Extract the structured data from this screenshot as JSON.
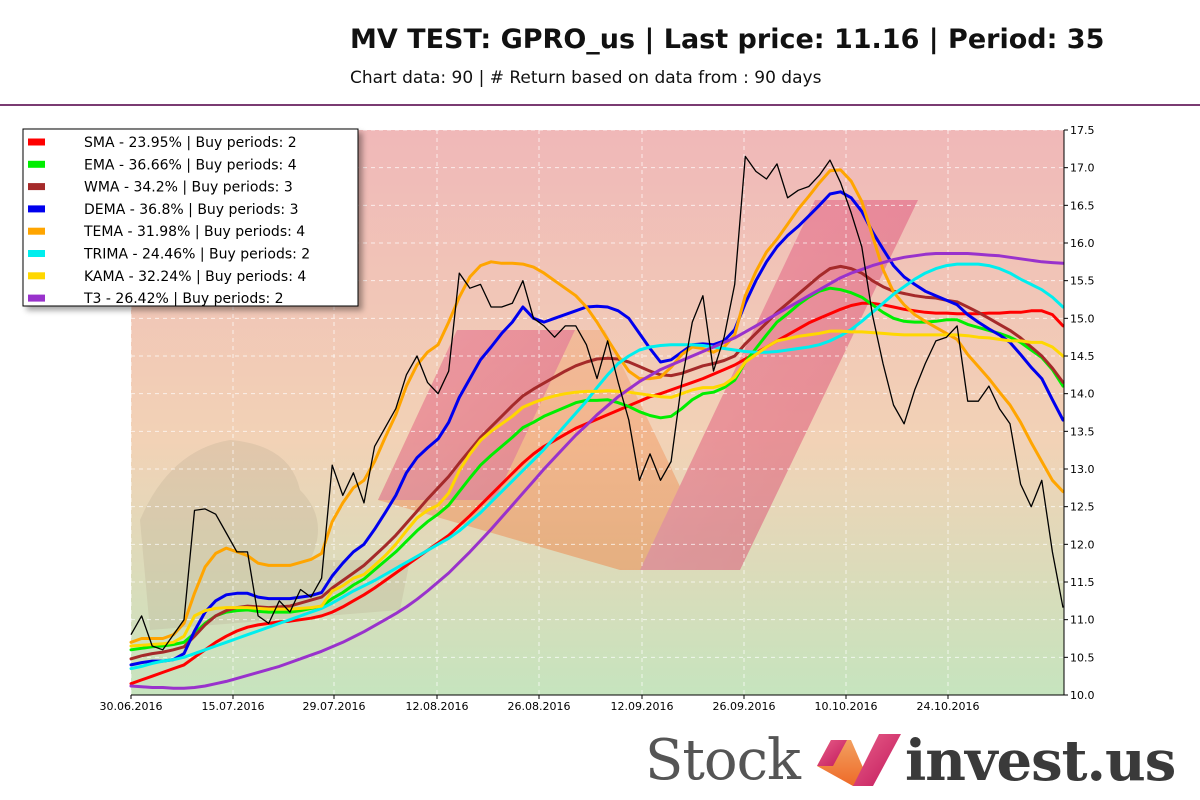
{
  "header": {
    "title": "MV TEST: GPRO_us | Last price: 11.16 | Period: 35",
    "subtitle": "Chart data: 90 | # Return based on data from : 90 days"
  },
  "brand": {
    "stock": "Stock",
    "invest": "invest.us"
  },
  "colors": {
    "divider": "#7a3b72",
    "bg_top": "#f0b8b8",
    "bg_bottom": "#c6e4be"
  },
  "chart_data": {
    "type": "line",
    "ylim": [
      10.0,
      17.5
    ],
    "y_ticks": [
      "10.0",
      "10.5",
      "11.0",
      "11.5",
      "12.0",
      "12.5",
      "13.0",
      "13.5",
      "14.0",
      "14.5",
      "15.0",
      "15.5",
      "16.0",
      "16.5",
      "17.0",
      "17.5"
    ],
    "x_tick_labels": [
      "30.06.2016",
      "15.07.2016",
      "29.07.2016",
      "12.08.2016",
      "26.08.2016",
      "12.09.2016",
      "26.09.2016",
      "10.10.2016",
      "24.10.2016"
    ],
    "legend_position": "top-left",
    "grid": true,
    "price": [
      10.8,
      11.05,
      10.65,
      10.6,
      10.8,
      11.0,
      12.45,
      12.47,
      12.4,
      12.15,
      11.9,
      11.9,
      11.05,
      10.95,
      11.25,
      11.1,
      11.4,
      11.3,
      11.55,
      13.05,
      12.65,
      12.95,
      12.55,
      13.3,
      13.55,
      13.8,
      14.25,
      14.5,
      14.15,
      14.0,
      14.3,
      15.6,
      15.4,
      15.45,
      15.15,
      15.15,
      15.2,
      15.5,
      15.0,
      14.9,
      14.75,
      14.9,
      14.9,
      14.65,
      14.2,
      14.7,
      14.15,
      13.65,
      12.85,
      13.2,
      12.85,
      13.1,
      14.15,
      14.95,
      15.3,
      14.3,
      14.75,
      15.45,
      17.15,
      16.95,
      16.85,
      17.05,
      16.6,
      16.7,
      16.75,
      16.9,
      17.1,
      16.8,
      16.4,
      15.95,
      15.05,
      14.4,
      13.85,
      13.6,
      14.05,
      14.4,
      14.7,
      14.75,
      14.9,
      13.9,
      13.9,
      14.1,
      13.8,
      13.6,
      12.8,
      12.5,
      12.85,
      11.9,
      11.16
    ],
    "series": [
      {
        "name": "SMA - 23.95% | Buy periods: 2",
        "color": "#ff0000",
        "values": [
          10.15,
          10.2,
          10.25,
          10.3,
          10.35,
          10.4,
          10.5,
          10.6,
          10.7,
          10.78,
          10.85,
          10.9,
          10.93,
          10.95,
          10.97,
          10.98,
          11.0,
          11.02,
          11.05,
          11.1,
          11.17,
          11.25,
          11.33,
          11.42,
          11.52,
          11.62,
          11.72,
          11.82,
          11.92,
          12.02,
          12.12,
          12.25,
          12.38,
          12.52,
          12.66,
          12.8,
          12.94,
          13.08,
          13.2,
          13.3,
          13.38,
          13.46,
          13.54,
          13.6,
          13.66,
          13.72,
          13.78,
          13.84,
          13.9,
          13.96,
          14.0,
          14.05,
          14.1,
          14.15,
          14.2,
          14.26,
          14.32,
          14.38,
          14.46,
          14.54,
          14.62,
          14.7,
          14.78,
          14.86,
          14.94,
          15.0,
          15.06,
          15.12,
          15.17,
          15.2,
          15.2,
          15.18,
          15.15,
          15.12,
          15.1,
          15.08,
          15.07,
          15.07,
          15.06,
          15.06,
          15.06,
          15.07,
          15.07,
          15.08,
          15.08,
          15.1,
          15.1,
          15.05,
          14.9
        ]
      },
      {
        "name": "EMA - 36.66% | Buy periods: 4",
        "color": "#00ee00",
        "values": [
          10.6,
          10.62,
          10.64,
          10.65,
          10.67,
          10.7,
          10.82,
          10.95,
          11.05,
          11.1,
          11.12,
          11.13,
          11.11,
          11.1,
          11.1,
          11.1,
          11.12,
          11.15,
          11.18,
          11.28,
          11.36,
          11.46,
          11.54,
          11.66,
          11.78,
          11.9,
          12.04,
          12.18,
          12.3,
          12.4,
          12.52,
          12.7,
          12.88,
          13.05,
          13.18,
          13.3,
          13.42,
          13.55,
          13.62,
          13.7,
          13.76,
          13.82,
          13.88,
          13.91,
          13.91,
          13.92,
          13.88,
          13.83,
          13.76,
          13.71,
          13.68,
          13.7,
          13.8,
          13.92,
          14.0,
          14.02,
          14.08,
          14.18,
          14.42,
          14.6,
          14.78,
          14.95,
          15.06,
          15.18,
          15.28,
          15.36,
          15.4,
          15.38,
          15.34,
          15.28,
          15.18,
          15.08,
          15.0,
          14.96,
          14.95,
          14.95,
          14.96,
          14.98,
          14.98,
          14.92,
          14.88,
          14.84,
          14.8,
          14.75,
          14.68,
          14.58,
          14.48,
          14.32,
          14.1
        ]
      },
      {
        "name": "WMA - 34.2% | Buy periods: 3",
        "color": "#a52a2a",
        "values": [
          10.48,
          10.52,
          10.55,
          10.57,
          10.6,
          10.64,
          10.78,
          10.93,
          11.05,
          11.12,
          11.16,
          11.18,
          11.17,
          11.16,
          11.17,
          11.18,
          11.22,
          11.26,
          11.3,
          11.42,
          11.52,
          11.62,
          11.72,
          11.85,
          11.98,
          12.12,
          12.28,
          12.44,
          12.6,
          12.75,
          12.9,
          13.08,
          13.25,
          13.42,
          13.56,
          13.7,
          13.84,
          13.97,
          14.06,
          14.14,
          14.22,
          14.3,
          14.37,
          14.42,
          14.46,
          14.47,
          14.46,
          14.42,
          14.36,
          14.3,
          14.25,
          14.24,
          14.27,
          14.32,
          14.37,
          14.4,
          14.44,
          14.5,
          14.66,
          14.8,
          14.94,
          15.08,
          15.2,
          15.32,
          15.44,
          15.56,
          15.66,
          15.69,
          15.66,
          15.6,
          15.5,
          15.42,
          15.36,
          15.33,
          15.3,
          15.28,
          15.27,
          15.24,
          15.22,
          15.15,
          15.08,
          15.0,
          14.92,
          14.84,
          14.74,
          14.62,
          14.5,
          14.34,
          14.15
        ]
      },
      {
        "name": "DEMA - 36.8% | Buy periods: 3",
        "color": "#0000ee",
        "values": [
          10.4,
          10.43,
          10.45,
          10.45,
          10.47,
          10.55,
          10.85,
          11.1,
          11.25,
          11.33,
          11.35,
          11.35,
          11.3,
          11.28,
          11.28,
          11.28,
          11.3,
          11.32,
          11.36,
          11.58,
          11.75,
          11.9,
          12.0,
          12.2,
          12.42,
          12.65,
          12.95,
          13.15,
          13.28,
          13.4,
          13.62,
          13.95,
          14.2,
          14.45,
          14.62,
          14.8,
          14.95,
          15.15,
          15.0,
          14.95,
          15.0,
          15.05,
          15.1,
          15.15,
          15.16,
          15.15,
          15.1,
          15.0,
          14.8,
          14.6,
          14.42,
          14.45,
          14.55,
          14.65,
          14.66,
          14.65,
          14.7,
          14.85,
          15.2,
          15.5,
          15.75,
          15.95,
          16.1,
          16.22,
          16.36,
          16.5,
          16.65,
          16.68,
          16.6,
          16.42,
          16.15,
          15.92,
          15.7,
          15.55,
          15.45,
          15.36,
          15.3,
          15.24,
          15.18,
          15.05,
          14.95,
          14.86,
          14.78,
          14.68,
          14.52,
          14.35,
          14.2,
          13.92,
          13.65
        ]
      },
      {
        "name": "TEMA - 31.98% | Buy periods: 4",
        "color": "#ffa500",
        "values": [
          10.7,
          10.75,
          10.75,
          10.75,
          10.8,
          10.95,
          11.35,
          11.7,
          11.88,
          11.95,
          11.9,
          11.85,
          11.75,
          11.72,
          11.72,
          11.72,
          11.76,
          11.8,
          11.88,
          12.3,
          12.55,
          12.75,
          12.85,
          13.1,
          13.42,
          13.72,
          14.1,
          14.38,
          14.55,
          14.65,
          14.95,
          15.28,
          15.55,
          15.7,
          15.75,
          15.73,
          15.73,
          15.72,
          15.68,
          15.6,
          15.5,
          15.4,
          15.3,
          15.15,
          14.95,
          14.72,
          14.5,
          14.3,
          14.2,
          14.2,
          14.22,
          14.35,
          14.52,
          14.62,
          14.6,
          14.55,
          14.62,
          14.78,
          15.3,
          15.62,
          15.88,
          16.05,
          16.25,
          16.45,
          16.62,
          16.8,
          16.96,
          16.97,
          16.82,
          16.55,
          16.1,
          15.65,
          15.35,
          15.18,
          15.05,
          14.96,
          14.88,
          14.8,
          14.72,
          14.52,
          14.36,
          14.2,
          14.02,
          13.85,
          13.62,
          13.35,
          13.1,
          12.85,
          12.7
        ]
      },
      {
        "name": "TRIMA - 24.46% | Buy periods: 2",
        "color": "#00eeee",
        "values": [
          10.35,
          10.38,
          10.42,
          10.45,
          10.47,
          10.5,
          10.55,
          10.6,
          10.65,
          10.7,
          10.75,
          10.8,
          10.85,
          10.9,
          10.95,
          11.0,
          11.05,
          11.1,
          11.15,
          11.22,
          11.3,
          11.38,
          11.45,
          11.52,
          11.6,
          11.68,
          11.76,
          11.84,
          11.92,
          12.0,
          12.08,
          12.18,
          12.3,
          12.42,
          12.56,
          12.7,
          12.84,
          12.98,
          13.12,
          13.26,
          13.42,
          13.58,
          13.74,
          13.9,
          14.08,
          14.25,
          14.4,
          14.5,
          14.58,
          14.62,
          14.64,
          14.65,
          14.65,
          14.65,
          14.64,
          14.62,
          14.6,
          14.58,
          14.56,
          14.55,
          14.55,
          14.56,
          14.58,
          14.6,
          14.62,
          14.65,
          14.7,
          14.77,
          14.85,
          14.96,
          15.08,
          15.2,
          15.32,
          15.42,
          15.52,
          15.6,
          15.66,
          15.7,
          15.72,
          15.72,
          15.72,
          15.7,
          15.66,
          15.6,
          15.52,
          15.45,
          15.38,
          15.28,
          15.15
        ]
      },
      {
        "name": "KAMA - 32.24% | Buy periods: 4",
        "color": "#ffd700",
        "values": [
          10.65,
          10.66,
          10.67,
          10.68,
          10.7,
          10.78,
          11.05,
          11.12,
          11.15,
          11.16,
          11.16,
          11.16,
          11.15,
          11.14,
          11.14,
          11.14,
          11.15,
          11.16,
          11.18,
          11.38,
          11.45,
          11.55,
          11.6,
          11.72,
          11.85,
          12.0,
          12.18,
          12.35,
          12.45,
          12.52,
          12.68,
          12.98,
          13.2,
          13.38,
          13.5,
          13.6,
          13.7,
          13.82,
          13.88,
          13.93,
          13.97,
          14.0,
          14.02,
          14.03,
          14.03,
          14.04,
          14.03,
          14.02,
          14.0,
          13.98,
          13.96,
          13.95,
          14.0,
          14.05,
          14.08,
          14.08,
          14.12,
          14.22,
          14.42,
          14.52,
          14.62,
          14.7,
          14.73,
          14.76,
          14.78,
          14.8,
          14.83,
          14.83,
          14.82,
          14.82,
          14.81,
          14.8,
          14.79,
          14.78,
          14.78,
          14.78,
          14.78,
          14.78,
          14.78,
          14.77,
          14.75,
          14.74,
          14.72,
          14.7,
          14.7,
          14.68,
          14.68,
          14.62,
          14.5
        ]
      },
      {
        "name": "T3 - 26.42% | Buy periods: 2",
        "color": "#9932cc",
        "values": [
          10.12,
          10.11,
          10.1,
          10.1,
          10.09,
          10.09,
          10.1,
          10.12,
          10.15,
          10.18,
          10.22,
          10.26,
          10.3,
          10.34,
          10.38,
          10.43,
          10.48,
          10.53,
          10.58,
          10.64,
          10.7,
          10.77,
          10.84,
          10.92,
          11.0,
          11.08,
          11.17,
          11.27,
          11.38,
          11.5,
          11.62,
          11.76,
          11.9,
          12.05,
          12.2,
          12.36,
          12.52,
          12.68,
          12.84,
          13.0,
          13.15,
          13.3,
          13.45,
          13.58,
          13.72,
          13.84,
          13.96,
          14.06,
          14.16,
          14.24,
          14.32,
          14.38,
          14.44,
          14.5,
          14.56,
          14.62,
          14.68,
          14.74,
          14.82,
          14.9,
          14.98,
          15.06,
          15.14,
          15.22,
          15.3,
          15.38,
          15.46,
          15.54,
          15.6,
          15.65,
          15.7,
          15.74,
          15.78,
          15.81,
          15.83,
          15.85,
          15.86,
          15.86,
          15.86,
          15.86,
          15.85,
          15.84,
          15.83,
          15.81,
          15.79,
          15.77,
          15.75,
          15.74,
          15.73
        ]
      }
    ]
  }
}
